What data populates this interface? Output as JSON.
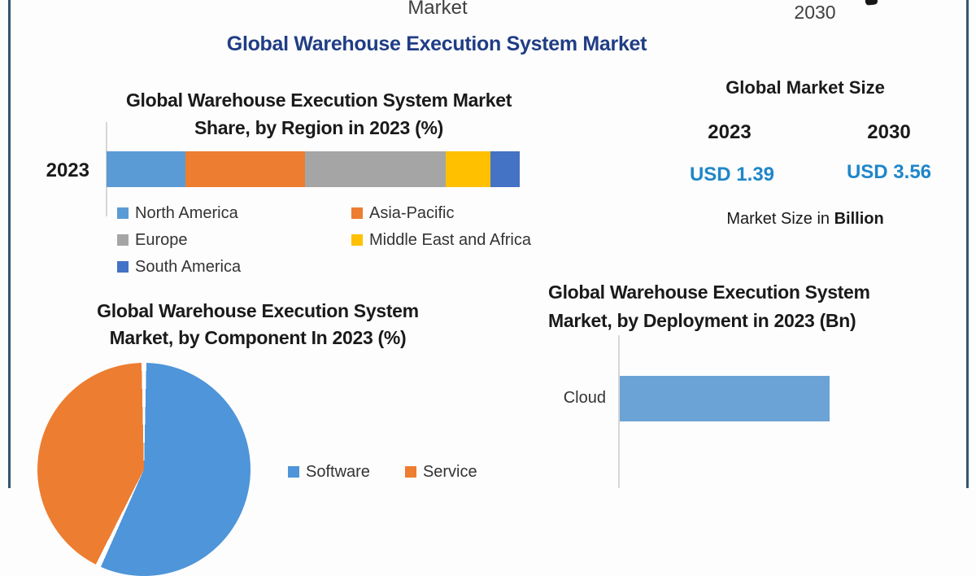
{
  "page": {
    "cropped_top_line": "Market",
    "cropped_top_year": "2030",
    "main_title": "Global Warehouse Execution System Market"
  },
  "colors": {
    "frame_border": "#33576e",
    "main_title_blue": "#203d85",
    "value_blue": "#1f86c9",
    "muted_text": "#3f3f3f"
  },
  "market_size_panel": {
    "title": "Global Market Size",
    "year_left": "2023",
    "year_right": "2030",
    "value_left": "USD 1.39",
    "value_right": "USD 3.56",
    "footnote_prefix": "Market Size in ",
    "footnote_bold": "Billion"
  },
  "chart_data": [
    {
      "id": "region_share",
      "type": "bar",
      "subtype": "stacked_horizontal",
      "title": "Global Warehouse Execution System Market Share, by Region in 2023 (%)",
      "title_lines": [
        "Global Warehouse Execution System Market",
        "Share, by Region in 2023 (%)"
      ],
      "category": "2023",
      "unit": "%",
      "series": [
        {
          "name": "North America",
          "value": 19,
          "color": "#5B9BD5"
        },
        {
          "name": "Asia-Pacific",
          "value": 29,
          "color": "#ED7D31"
        },
        {
          "name": "Europe",
          "value": 34,
          "color": "#A5A5A5"
        },
        {
          "name": "Middle East and Africa",
          "value": 11,
          "color": "#FFC000"
        },
        {
          "name": "South America",
          "value": 7,
          "color": "#4472C4"
        }
      ],
      "legend_position": "bottom-two-columns"
    },
    {
      "id": "component_split",
      "type": "pie",
      "title": "Global Warehouse Execution System Market, by Component  In 2023 (%)",
      "title_lines": [
        "Global Warehouse Execution System",
        "Market, by Component  In 2023 (%)"
      ],
      "unit": "%",
      "slices": [
        {
          "name": "Software",
          "value": 57,
          "color": "#4E95D9"
        },
        {
          "name": "Service",
          "value": 43,
          "color": "#ED7D31"
        }
      ],
      "start_angle_deg": 0,
      "legend_position": "right-of-pie"
    },
    {
      "id": "deployment_size",
      "type": "bar",
      "subtype": "horizontal",
      "title": "Global Warehouse Execution System Market, by Deployment in 2023 (Bn)",
      "title_lines": [
        "Global Warehouse Execution System",
        "Market, by Deployment in 2023 (Bn)"
      ],
      "unit": "Bn",
      "categories": [
        "Cloud"
      ],
      "bar_color": "#6BA3D6",
      "bar_fraction_of_plot": 0.6
    }
  ]
}
